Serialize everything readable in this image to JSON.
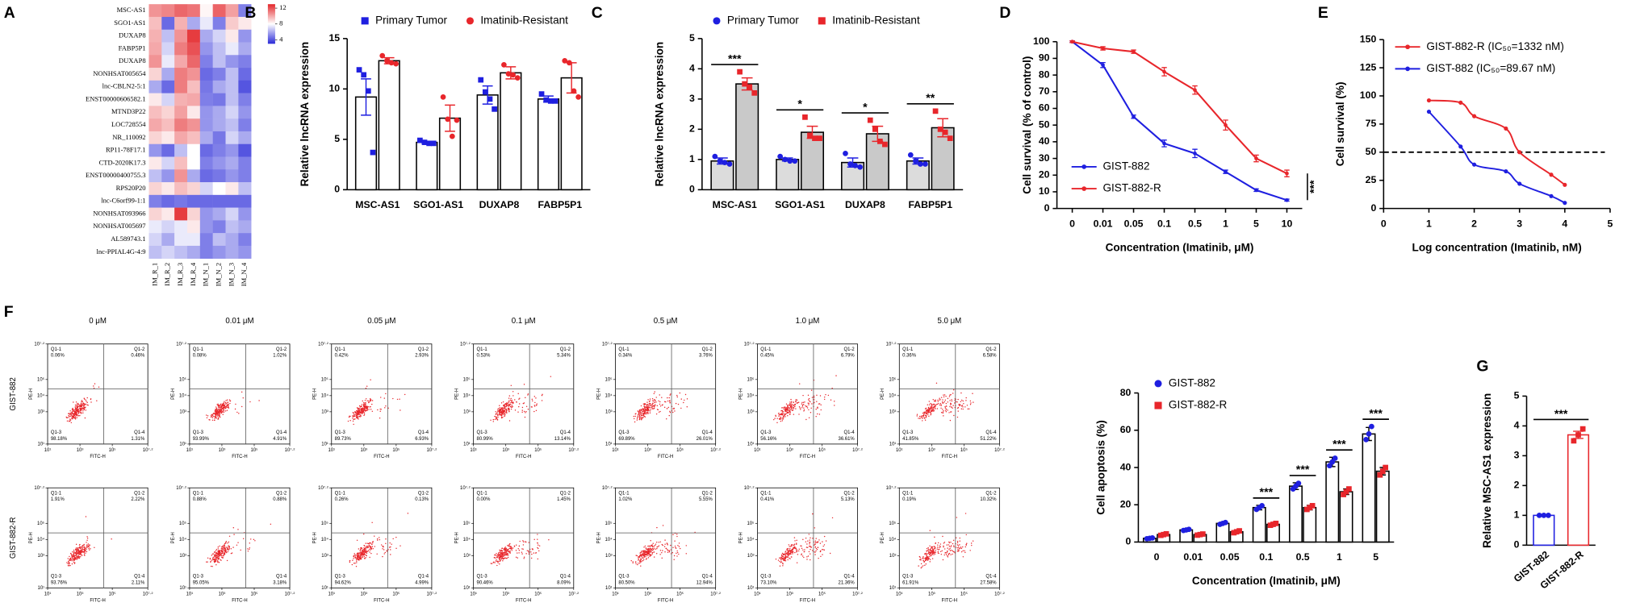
{
  "chart_data": [
    {
      "type": "heatmap",
      "panel_label": "A",
      "rows": [
        "MSC-AS1",
        "SGO1-AS1",
        "DUXAP8",
        "FABP5P1",
        "DUXAP8",
        "NONHSAT005654",
        "lnc-CBLN2-5:1",
        "ENST00000606582.1",
        "MTND3P22",
        "LOC728554",
        "NR_110092",
        "RP11-78F17.1",
        "CTD-2020K17.3",
        "ENST00000400755.3",
        "RPS20P20",
        "lnc-C6orf99-1:1",
        "NONHSAT093966",
        "NONHSAT005697",
        "AL589743.1",
        "lnc-PPIAL4G-4:9"
      ],
      "columns": [
        "IM_R_1",
        "IM_R_2",
        "IM_R_3",
        "IM_R_4",
        "IM_N_1",
        "IM_N_2",
        "IM_N_3",
        "IM_N_4"
      ],
      "values": [
        [
          10.5,
          10.8,
          11.5,
          11.2,
          8.2,
          11.6,
          10.2,
          5.0
        ],
        [
          9.5,
          4.5,
          9.8,
          6.0,
          7.5,
          5.0,
          9.2,
          8.5
        ],
        [
          9.8,
          6.5,
          10.5,
          12.5,
          6.0,
          7.0,
          8.5,
          5.5
        ],
        [
          10.0,
          7.0,
          11.0,
          12.0,
          5.5,
          6.5,
          7.5,
          6.0
        ],
        [
          10.5,
          7.5,
          10.0,
          11.5,
          5.0,
          6.5,
          5.5,
          5.0
        ],
        [
          9.0,
          6.0,
          11.0,
          10.5,
          4.5,
          5.0,
          6.5,
          4.5
        ],
        [
          6.0,
          4.5,
          11.0,
          9.5,
          4.8,
          6.0,
          6.5,
          4.0
        ],
        [
          8.5,
          7.0,
          9.8,
          10.0,
          5.0,
          4.8,
          6.5,
          5.0
        ],
        [
          9.5,
          9.0,
          10.2,
          8.5,
          5.5,
          6.0,
          7.0,
          5.5
        ],
        [
          10.0,
          9.5,
          11.0,
          10.5,
          5.5,
          6.0,
          6.5,
          5.0
        ],
        [
          9.0,
          8.5,
          10.0,
          9.5,
          6.0,
          4.8,
          7.0,
          6.0
        ],
        [
          5.5,
          4.5,
          6.5,
          8.0,
          4.5,
          5.0,
          5.5,
          4.0
        ],
        [
          8.5,
          7.0,
          9.5,
          8.0,
          5.0,
          5.5,
          6.0,
          5.0
        ],
        [
          6.5,
          5.5,
          10.5,
          6.0,
          4.5,
          4.8,
          5.5,
          5.0
        ],
        [
          9.0,
          8.5,
          9.5,
          9.0,
          7.0,
          8.0,
          8.5,
          6.5
        ],
        [
          5.0,
          4.5,
          4.8,
          4.5,
          4.5,
          4.5,
          4.5,
          4.5
        ],
        [
          9.0,
          8.5,
          12.5,
          9.0,
          5.5,
          6.0,
          7.0,
          5.5
        ],
        [
          7.5,
          7.0,
          7.5,
          8.5,
          5.5,
          5.0,
          6.5,
          6.0
        ],
        [
          7.0,
          6.0,
          7.5,
          7.5,
          5.0,
          6.5,
          6.0,
          5.0
        ],
        [
          6.5,
          7.0,
          6.5,
          6.0,
          5.0,
          5.5,
          6.0,
          5.5
        ]
      ],
      "clim": [
        3,
        13
      ],
      "cticks": [
        4,
        8,
        12
      ],
      "colors": [
        "#2a2ad8",
        "#ffffff",
        "#e3262a"
      ]
    },
    {
      "type": "bar",
      "panel_label": "B",
      "y_label": "Relative lncRNA expression",
      "categories": [
        "MSC-AS1",
        "SGO1-AS1",
        "DUXAP8",
        "FABP5P1"
      ],
      "series": [
        {
          "name": "Primary Tumor",
          "color": "#1f1fe0",
          "marker": "square",
          "bar_fill": "#ffffff",
          "values": [
            9.2,
            4.7,
            9.4,
            9.0
          ],
          "errors": [
            1.8,
            0.1,
            0.9,
            0.3
          ],
          "points": [
            [
              11.9,
              11.4,
              9.8,
              3.7
            ],
            [
              4.9,
              4.7,
              4.6,
              4.6
            ],
            [
              10.9,
              9.7,
              9.0,
              8.0
            ],
            [
              9.5,
              8.9,
              8.8,
              8.8
            ]
          ]
        },
        {
          "name": "Imatinib-Resistant",
          "color": "#e8262b",
          "marker": "circle",
          "bar_fill": "#ffffff",
          "values": [
            12.8,
            7.1,
            11.6,
            11.1
          ],
          "errors": [
            0.3,
            1.3,
            0.6,
            1.5
          ],
          "points": [
            [
              13.3,
              12.8,
              12.6,
              12.5
            ],
            [
              9.2,
              7.0,
              5.3,
              6.9
            ],
            [
              12.4,
              11.5,
              11.4,
              11.1
            ],
            [
              12.8,
              12.6,
              9.8,
              9.2
            ]
          ]
        }
      ],
      "ylim": [
        0,
        15
      ],
      "yticks": [
        0,
        5,
        10,
        15
      ]
    },
    {
      "type": "bar",
      "panel_label": "C",
      "y_label": "Relative lncRNA expression",
      "categories": [
        "MSC-AS1",
        "SGO1-AS1",
        "DUXAP8",
        "FABP5P1"
      ],
      "series": [
        {
          "name": "Primary Tumor",
          "color": "#1f1fe0",
          "marker": "circle",
          "bar_fill": "#dcdcdc",
          "values": [
            0.95,
            1.0,
            0.9,
            0.95
          ],
          "errors": [
            0.1,
            0.05,
            0.15,
            0.1
          ],
          "points": [
            [
              1.1,
              0.95,
              0.9,
              0.85
            ],
            [
              1.1,
              1.0,
              0.95,
              0.95
            ],
            [
              1.2,
              0.85,
              0.8,
              0.75
            ],
            [
              1.15,
              0.95,
              0.85,
              0.85
            ]
          ]
        },
        {
          "name": "Imatinib-Resistant",
          "color": "#e8262b",
          "marker": "square",
          "bar_fill": "#c9c9c9",
          "values": [
            3.5,
            1.9,
            1.85,
            2.05
          ],
          "errors": [
            0.2,
            0.2,
            0.25,
            0.3
          ],
          "points": [
            [
              3.9,
              3.5,
              3.4,
              3.2
            ],
            [
              2.4,
              1.8,
              1.7,
              1.7
            ],
            [
              2.3,
              2.0,
              1.6,
              1.5
            ],
            [
              2.6,
              2.0,
              1.9,
              1.7
            ]
          ]
        }
      ],
      "annotations": [
        "***",
        "*",
        "*",
        "**"
      ],
      "ylim": [
        0,
        5
      ],
      "yticks": [
        0,
        1,
        2,
        3,
        4,
        5
      ]
    },
    {
      "type": "line",
      "panel_label": "D",
      "y_label": "Cell survival (% of control)",
      "x_label": "Concentration (Imatinib, μM)",
      "categories": [
        "0",
        "0.01",
        "0.05",
        "0.1",
        "0.5",
        "1",
        "5",
        "10"
      ],
      "series": [
        {
          "name": "GIST-882",
          "color": "#1f1fe0",
          "values": [
            100,
            86,
            55,
            39,
            33,
            22,
            11,
            5
          ],
          "errors": [
            0.5,
            1.5,
            1,
            2,
            2.5,
            1,
            0.8,
            0.6
          ]
        },
        {
          "name": "GIST-882-R",
          "color": "#e8262b",
          "values": [
            100,
            96,
            94,
            82,
            71,
            50,
            30,
            21
          ],
          "errors": [
            0.5,
            1,
            1,
            2.5,
            2.5,
            3,
            2,
            2
          ]
        }
      ],
      "annotation": "***",
      "ylim": [
        0,
        100
      ],
      "yticks": [
        0,
        10,
        20,
        30,
        40,
        50,
        60,
        70,
        80,
        90,
        100
      ]
    },
    {
      "type": "scatter",
      "panel_label": "E",
      "y_label": "Cell survival (%)",
      "x_label": "Log concentration (Imatinib, nM)",
      "legend_text_colored": true,
      "series": [
        {
          "name": "GIST-882-R (IC₅₀=1332 nM)",
          "color": "#e8262b",
          "x": [
            1,
            1.7,
            2,
            2.7,
            3,
            3.7,
            4
          ],
          "values": [
            96,
            94,
            82,
            71,
            50,
            30,
            21
          ]
        },
        {
          "name": "GIST-882 (IC₅₀=89.67 nM)",
          "color": "#1f1fe0",
          "x": [
            1,
            1.7,
            2,
            2.7,
            3,
            3.7,
            4
          ],
          "values": [
            86,
            55,
            39,
            33,
            22,
            11,
            5
          ]
        }
      ],
      "hline": 50,
      "xlim": [
        0,
        5
      ],
      "xticks": [
        0,
        1,
        2,
        3,
        4,
        5
      ],
      "ylim": [
        0,
        150
      ],
      "yticks": [
        0,
        25,
        50,
        75,
        100,
        125,
        150
      ]
    },
    {
      "type": "flow",
      "panel_label": "F",
      "x_label": "FITC-H",
      "y_label": "PE-H",
      "concentrations": [
        "0 μM",
        "0.01 μM",
        "0.05 μM",
        "0.1 μM",
        "0.5 μM",
        "1.0 μM",
        "5.0 μM"
      ],
      "rows": [
        "GIST-882",
        "GIST-882-R"
      ],
      "quadrant_names": [
        "Q1-1",
        "Q1-2",
        "Q1-3",
        "Q1-4"
      ],
      "panels": [
        [
          [
            "0.06%",
            "0.46%",
            "98.18%",
            "1.31%"
          ],
          [
            "0.08%",
            "1.02%",
            "93.99%",
            "4.91%"
          ],
          [
            "0.42%",
            "2.93%",
            "89.73%",
            "6.93%"
          ],
          [
            "0.53%",
            "5.34%",
            "80.99%",
            "13.14%"
          ],
          [
            "0.34%",
            "3.76%",
            "69.89%",
            "26.01%"
          ],
          [
            "0.45%",
            "6.79%",
            "56.16%",
            "36.61%"
          ],
          [
            "0.36%",
            "6.58%",
            "41.85%",
            "51.22%"
          ]
        ],
        [
          [
            "1.91%",
            "2.22%",
            "93.76%",
            "2.11%"
          ],
          [
            "0.88%",
            "0.88%",
            "95.05%",
            "3.18%"
          ],
          [
            "0.26%",
            "0.13%",
            "94.62%",
            "4.99%"
          ],
          [
            "0.00%",
            "1.45%",
            "90.46%",
            "8.09%"
          ],
          [
            "1.02%",
            "5.55%",
            "80.50%",
            "12.94%"
          ],
          [
            "0.41%",
            "5.13%",
            "73.10%",
            "21.36%"
          ],
          [
            "0.19%",
            "10.32%",
            "61.91%",
            "27.58%"
          ]
        ]
      ],
      "xlim": [
        1,
        7.2
      ],
      "xticks": [
        {
          "value": 1,
          "label": "10¹"
        },
        {
          "value": 3,
          "label": "10³"
        },
        {
          "value": 5,
          "label": "10⁵"
        },
        {
          "value": 7.2,
          "label": "10⁷·²"
        }
      ],
      "ylim": [
        1,
        7.2
      ],
      "yticks": [
        {
          "value": 1,
          "label": "10¹"
        },
        {
          "value": 3,
          "label": "10³"
        },
        {
          "value": 4,
          "label": "10⁴"
        },
        {
          "value": 5,
          "label": "10⁵"
        },
        {
          "value": 7.2,
          "label": "10⁷·²"
        }
      ]
    },
    {
      "type": "bar",
      "y_label": "Cell apoptosis (%)",
      "x_label": "Concentration (Imatinib, μM)",
      "categories": [
        "0",
        "0.01",
        "0.05",
        "0.1",
        "0.5",
        "1",
        "5"
      ],
      "series": [
        {
          "name": "GIST-882",
          "color": "#1f1fe0",
          "marker": "circle",
          "bar_fill": "#ffffff",
          "error_color": "#000000",
          "values": [
            2,
            6.5,
            10,
            18.5,
            30,
            43,
            58
          ],
          "errors": [
            0.3,
            0.4,
            0.6,
            1.2,
            1.8,
            2.5,
            3.5
          ],
          "points": [
            [
              1.8,
              2,
              2.2
            ],
            [
              6.2,
              6.5,
              6.8
            ],
            [
              9.5,
              10,
              10.5
            ],
            [
              17.5,
              18.5,
              19.5
            ],
            [
              28.5,
              30,
              31.5
            ],
            [
              41,
              43,
              45
            ],
            [
              55,
              58,
              62
            ]
          ]
        },
        {
          "name": "GIST-882-R",
          "color": "#e8262b",
          "marker": "square",
          "bar_fill": "#ffffff",
          "error_color": "#000000",
          "values": [
            4,
            4,
            5.5,
            9.5,
            18.5,
            27,
            38
          ],
          "errors": [
            0.4,
            0.3,
            0.5,
            0.6,
            1.2,
            1.5,
            2
          ],
          "points": [
            [
              3.6,
              4,
              4.4
            ],
            [
              3.7,
              4,
              4.3
            ],
            [
              5,
              5.5,
              6
            ],
            [
              9,
              9.5,
              10
            ],
            [
              17.5,
              18.5,
              19.5
            ],
            [
              25.5,
              27,
              28.5
            ],
            [
              36,
              38,
              40
            ]
          ]
        }
      ],
      "annotations": [
        null,
        null,
        null,
        "***",
        "***",
        "***",
        "***"
      ],
      "ylim": [
        0,
        80
      ],
      "yticks": [
        0,
        20,
        40,
        60,
        80
      ]
    },
    {
      "type": "bar",
      "panel_label": "G",
      "y_label": "Relative MSC-AS1 expression",
      "rotate_categories": true,
      "categories": [
        "GIST-882",
        "GIST-882-R"
      ],
      "series": [
        {
          "colors": [
            "#1f1fe0",
            "#e8262b"
          ],
          "markers": [
            "circle",
            "square"
          ],
          "bar_fill": "#ffffff",
          "values": [
            1.0,
            3.7
          ],
          "errors": [
            0.02,
            0.12
          ],
          "points": [
            [
              1,
              1,
              1
            ],
            [
              3.5,
              3.7,
              3.9
            ]
          ]
        }
      ],
      "annotation": "***",
      "ylim": [
        0,
        5
      ],
      "yticks": [
        0,
        1,
        2,
        3,
        4,
        5
      ]
    }
  ]
}
